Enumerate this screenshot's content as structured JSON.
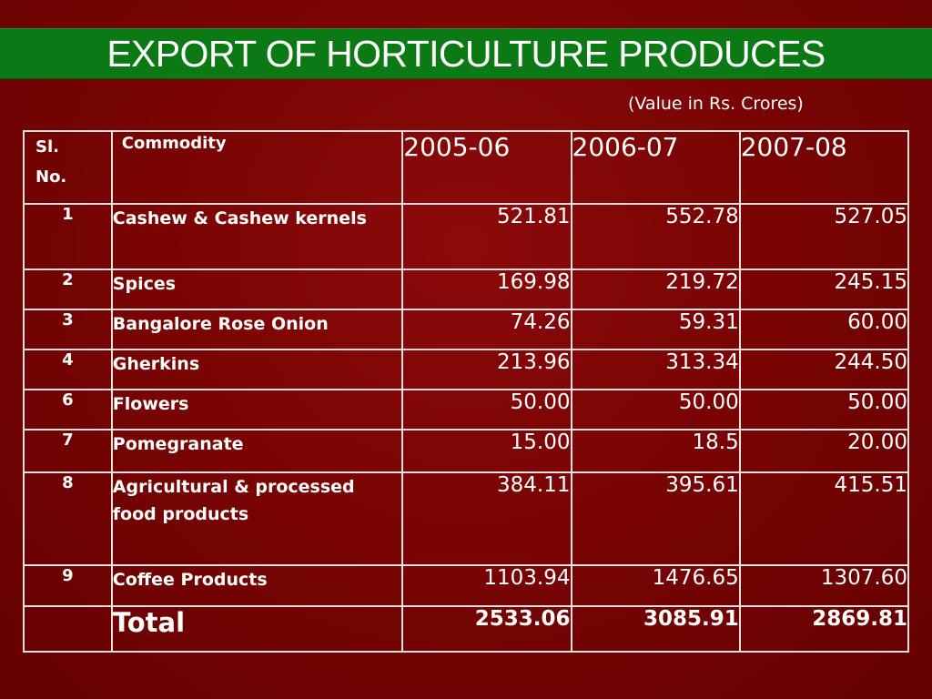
{
  "title": "EXPORT OF HORTICULTURE PRODUCES",
  "subtitle": "(Value in Rs. Crores)",
  "colors": {
    "background": "#7a0404",
    "title_band": "#0b7a14",
    "text": "#ffffff",
    "grid": "#ece0e0"
  },
  "table": {
    "headers": {
      "sl_line1": "Sl.",
      "sl_line2": "No.",
      "commodity": "Commodity",
      "years": [
        "2005-06",
        "2006-07",
        "2007-08"
      ]
    },
    "rows": [
      {
        "sl": "1",
        "commodity": "Cashew & Cashew kernels",
        "values": [
          "521.81",
          "552.78",
          "527.05"
        ]
      },
      {
        "sl": "2",
        "commodity": "Spices",
        "values": [
          "169.98",
          "219.72",
          "245.15"
        ]
      },
      {
        "sl": "3",
        "commodity": "Bangalore Rose Onion",
        "values": [
          "74.26",
          "59.31",
          "60.00"
        ]
      },
      {
        "sl": "4",
        "commodity": "Gherkins",
        "values": [
          "213.96",
          "313.34",
          "244.50"
        ]
      },
      {
        "sl": "6",
        "commodity": "Flowers",
        "values": [
          "50.00",
          "50.00",
          "50.00"
        ]
      },
      {
        "sl": "7",
        "commodity": "Pomegranate",
        "values": [
          "15.00",
          "18.5",
          "20.00"
        ]
      },
      {
        "sl": "8",
        "commodity": "Agricultural & processed food products",
        "values": [
          "384.11",
          "395.61",
          "415.51"
        ]
      },
      {
        "sl": "9",
        "commodity": "Coffee Products",
        "values": [
          "1103.94",
          "1476.65",
          "1307.60"
        ]
      }
    ],
    "total": {
      "label": "Total",
      "values": [
        "2533.06",
        "3085.91",
        "2869.81"
      ]
    }
  }
}
